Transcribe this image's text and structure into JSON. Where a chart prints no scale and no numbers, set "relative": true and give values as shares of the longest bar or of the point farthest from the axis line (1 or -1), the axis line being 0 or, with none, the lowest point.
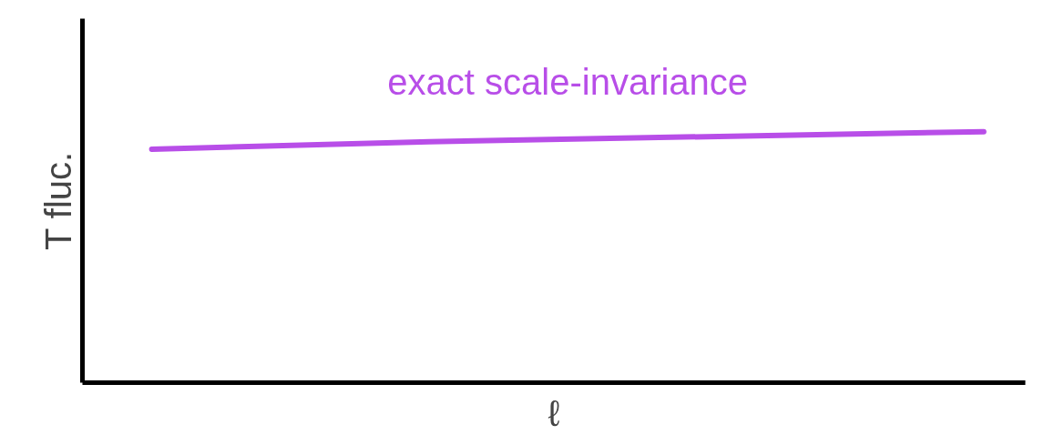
{
  "chart_data": {
    "type": "line",
    "relative": true,
    "xlabel": "ℓ",
    "ylabel": "T fluc.",
    "categories": [
      null,
      null,
      null,
      null
    ],
    "series": [
      {
        "name": "exact scale-invariance",
        "color": "#b84ee8",
        "values": [
          0.93,
          0.96,
          0.98,
          1.0
        ]
      }
    ]
  }
}
